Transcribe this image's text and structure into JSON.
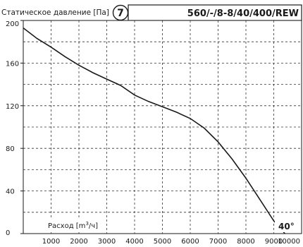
{
  "chart_data": {
    "type": "line",
    "title": "Статическое давление [Па]",
    "badge": "7",
    "model": "560/-/8-8/40/400/REW",
    "xlabel_prefix": "Расход [m",
    "xlabel_sup": "3",
    "xlabel_suffix": "/ч]",
    "ylabel": "Статическое давление [Па]",
    "xlim": [
      0,
      10000
    ],
    "ylim": [
      0,
      200
    ],
    "xticks": [
      "1000",
      "2000",
      "3000",
      "4000",
      "5000",
      "6000",
      "7000",
      "8000",
      "9000",
      "10000"
    ],
    "yticks": [
      "0",
      "40",
      "80",
      "120",
      "160",
      "200"
    ],
    "grid": true,
    "series": [
      {
        "name": "40°",
        "x": [
          0,
          500,
          1000,
          1500,
          2000,
          2500,
          3000,
          3500,
          4000,
          4500,
          5000,
          5500,
          6000,
          6500,
          7000,
          7500,
          8000,
          8500,
          9000,
          9400
        ],
        "y": [
          193,
          183,
          175,
          166,
          158,
          151,
          145,
          139,
          130,
          124,
          119,
          114,
          108,
          99,
          86,
          70,
          52,
          32,
          12,
          0
        ]
      }
    ]
  }
}
